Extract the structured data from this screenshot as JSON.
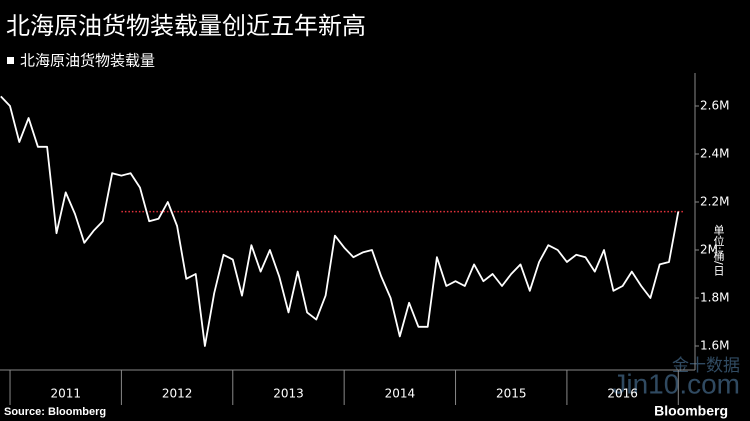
{
  "chart_data": {
    "type": "line",
    "title": "北海原油货物装载量创近五年新高",
    "unit_note": "单位:桶/日",
    "source": "Source: Bloomberg",
    "brand": "Bloomberg",
    "watermark": "金十数据",
    "watermark_site": "Jin10.com",
    "x": [
      2010.917,
      2011.0,
      2011.083,
      2011.167,
      2011.25,
      2011.333,
      2011.417,
      2011.5,
      2011.583,
      2011.667,
      2011.75,
      2011.833,
      2011.917,
      2012.0,
      2012.083,
      2012.167,
      2012.25,
      2012.333,
      2012.417,
      2012.5,
      2012.583,
      2012.667,
      2012.75,
      2012.833,
      2012.917,
      2013.0,
      2013.083,
      2013.167,
      2013.25,
      2013.333,
      2013.417,
      2013.5,
      2013.583,
      2013.667,
      2013.75,
      2013.833,
      2013.917,
      2014.0,
      2014.083,
      2014.167,
      2014.25,
      2014.333,
      2014.417,
      2014.5,
      2014.583,
      2014.667,
      2014.75,
      2014.833,
      2014.917,
      2015.0,
      2015.083,
      2015.167,
      2015.25,
      2015.333,
      2015.417,
      2015.5,
      2015.583,
      2015.667,
      2015.75,
      2015.833,
      2015.917,
      2016.0,
      2016.083,
      2016.167,
      2016.25,
      2016.333,
      2016.417,
      2016.5,
      2016.583,
      2016.667,
      2016.75,
      2016.833,
      2016.917,
      2017.0
    ],
    "series": [
      {
        "name": "北海原油货物装载量",
        "color": "#ffffff",
        "values": [
          2640000,
          2600000,
          2450000,
          2550000,
          2430000,
          2430000,
          2070000,
          2240000,
          2150000,
          2030000,
          2080000,
          2120000,
          2320000,
          2310000,
          2320000,
          2260000,
          2120000,
          2130000,
          2200000,
          2100000,
          1880000,
          1900000,
          1600000,
          1820000,
          1980000,
          1960000,
          1810000,
          2020000,
          1910000,
          2000000,
          1890000,
          1740000,
          1910000,
          1740000,
          1710000,
          1810000,
          2060000,
          2010000,
          1970000,
          1990000,
          2000000,
          1890000,
          1800000,
          1640000,
          1780000,
          1680000,
          1680000,
          1970000,
          1850000,
          1870000,
          1850000,
          1940000,
          1870000,
          1900000,
          1850000,
          1900000,
          1940000,
          1830000,
          1950000,
          2020000,
          2000000,
          1950000,
          1980000,
          1970000,
          1910000,
          2000000,
          1830000,
          1850000,
          1910000,
          1850000,
          1800000,
          1940000,
          1950000,
          2160000
        ]
      }
    ],
    "reference_line": {
      "value": 2160000,
      "from": 2012.0,
      "color": "#e8323c"
    },
    "xlim": [
      2010.91,
      2017.15
    ],
    "xticks": [
      2011,
      2012,
      2013,
      2014,
      2015,
      2016
    ],
    "ylim": [
      1500000,
      2737500
    ],
    "yticks": [
      {
        "value": 1600000,
        "label": "1.6M"
      },
      {
        "value": 1800000,
        "label": "1.8M"
      },
      {
        "value": 2000000,
        "label": "2M"
      },
      {
        "value": 2200000,
        "label": "2.2M"
      },
      {
        "value": 2400000,
        "label": "2.4M"
      },
      {
        "value": 2600000,
        "label": "2.6M"
      }
    ]
  }
}
